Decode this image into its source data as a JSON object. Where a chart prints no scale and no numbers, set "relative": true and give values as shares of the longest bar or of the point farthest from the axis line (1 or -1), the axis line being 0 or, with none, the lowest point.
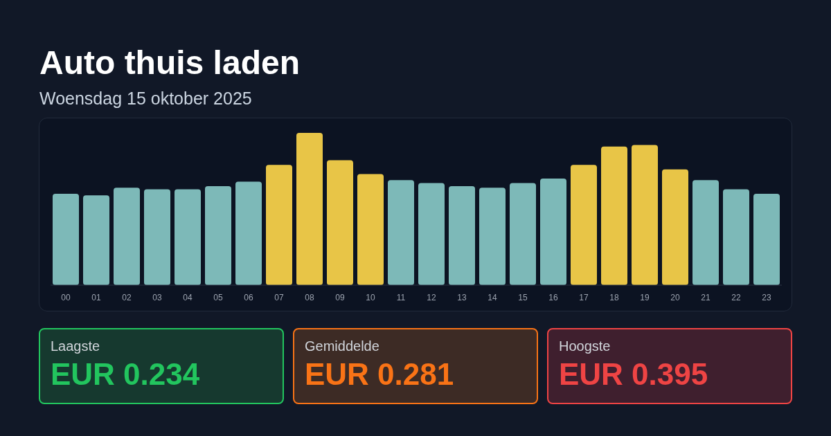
{
  "chart_data": [
    {
      "type": "bar",
      "title": "Auto thuis laden",
      "subtitle": "Woensdag 15 oktober 2025",
      "relative": true,
      "categories": [
        "00",
        "01",
        "02",
        "03",
        "04",
        "05",
        "06",
        "07",
        "08",
        "09",
        "10",
        "11",
        "12",
        "13",
        "14",
        "15",
        "16",
        "17",
        "18",
        "19",
        "20",
        "21",
        "22",
        "23"
      ],
      "values": [
        0.6,
        0.59,
        0.64,
        0.63,
        0.63,
        0.65,
        0.68,
        0.79,
        1,
        0.82,
        0.73,
        0.69,
        0.67,
        0.65,
        0.64,
        0.67,
        0.7,
        0.79,
        0.91,
        0.92,
        0.76,
        0.69,
        0.63,
        0.6
      ],
      "colors": [
        "#7db9b8",
        "#7db9b8",
        "#7db9b8",
        "#7db9b8",
        "#7db9b8",
        "#7db9b8",
        "#7db9b8",
        "#e8c547",
        "#e8c547",
        "#e8c547",
        "#e8c547",
        "#7db9b8",
        "#7db9b8",
        "#7db9b8",
        "#7db9b8",
        "#7db9b8",
        "#7db9b8",
        "#e8c547",
        "#e8c547",
        "#e8c547",
        "#e8c547",
        "#7db9b8",
        "#7db9b8",
        "#7db9b8"
      ],
      "grid": false,
      "legend": false
    },
    {
      "type": "other",
      "annotations": [
        "Laagste",
        "EUR 0.234",
        "Gemiddelde",
        "EUR 0.281",
        "Hoogste",
        "EUR 0.395"
      ]
    }
  ]
}
